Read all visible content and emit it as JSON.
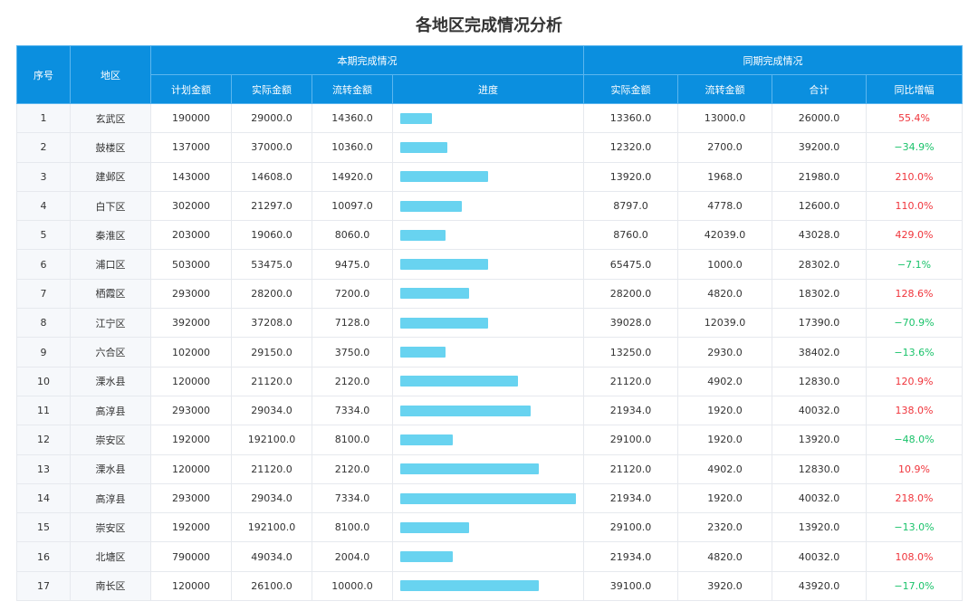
{
  "title": "各地区完成情况分析",
  "colors": {
    "header_bg": "#0b8fdf",
    "bar": "#68d3f0",
    "increase": "#f0353c",
    "decrease": "#1bc36b"
  },
  "headers": {
    "seq": "序号",
    "region": "地区",
    "current_group": "本期完成情况",
    "previous_group": "同期完成情况",
    "plan": "计划金额",
    "actual": "实际金额",
    "flow": "流转金额",
    "progress": "进度",
    "prev_actual": "实际金额",
    "prev_flow": "流转金额",
    "total": "合计",
    "yoy": "同比增幅"
  },
  "rows": [
    {
      "seq": "1",
      "region": "玄武区",
      "plan": "190000",
      "actual": "29000.0",
      "flow": "14360.0",
      "progress": 0.18,
      "prev_actual": "13360.0",
      "prev_flow": "13000.0",
      "total": "26000.0",
      "yoy": "55.4%",
      "trend": "up"
    },
    {
      "seq": "2",
      "region": "鼓楼区",
      "plan": "137000",
      "actual": "37000.0",
      "flow": "10360.0",
      "progress": 0.27,
      "prev_actual": "12320.0",
      "prev_flow": "2700.0",
      "total": "39200.0",
      "yoy": "−34.9%",
      "trend": "down"
    },
    {
      "seq": "3",
      "region": "建邺区",
      "plan": "143000",
      "actual": "14608.0",
      "flow": "14920.0",
      "progress": 0.5,
      "prev_actual": "13920.0",
      "prev_flow": "1968.0",
      "total": "21980.0",
      "yoy": "210.0%",
      "trend": "up"
    },
    {
      "seq": "4",
      "region": "白下区",
      "plan": "302000",
      "actual": "21297.0",
      "flow": "10097.0",
      "progress": 0.35,
      "prev_actual": "8797.0",
      "prev_flow": "4778.0",
      "total": "12600.0",
      "yoy": "110.0%",
      "trend": "up"
    },
    {
      "seq": "5",
      "region": "秦淮区",
      "plan": "203000",
      "actual": "19060.0",
      "flow": "8060.0",
      "progress": 0.26,
      "prev_actual": "8760.0",
      "prev_flow": "42039.0",
      "total": "43028.0",
      "yoy": "429.0%",
      "trend": "up"
    },
    {
      "seq": "6",
      "region": "浦口区",
      "plan": "503000",
      "actual": "53475.0",
      "flow": "9475.0",
      "progress": 0.5,
      "prev_actual": "65475.0",
      "prev_flow": "1000.0",
      "total": "28302.0",
      "yoy": "−7.1%",
      "trend": "down"
    },
    {
      "seq": "7",
      "region": "栖霞区",
      "plan": "293000",
      "actual": "28200.0",
      "flow": "7200.0",
      "progress": 0.39,
      "prev_actual": "28200.0",
      "prev_flow": "4820.0",
      "total": "18302.0",
      "yoy": "128.6%",
      "trend": "up"
    },
    {
      "seq": "8",
      "region": "江宁区",
      "plan": "392000",
      "actual": "37208.0",
      "flow": "7128.0",
      "progress": 0.5,
      "prev_actual": "39028.0",
      "prev_flow": "12039.0",
      "total": "17390.0",
      "yoy": "−70.9%",
      "trend": "down"
    },
    {
      "seq": "9",
      "region": "六合区",
      "plan": "102000",
      "actual": "29150.0",
      "flow": "3750.0",
      "progress": 0.26,
      "prev_actual": "13250.0",
      "prev_flow": "2930.0",
      "total": "38402.0",
      "yoy": "−13.6%",
      "trend": "down"
    },
    {
      "seq": "10",
      "region": "溧水县",
      "plan": "120000",
      "actual": "21120.0",
      "flow": "2120.0",
      "progress": 0.67,
      "prev_actual": "21120.0",
      "prev_flow": "4902.0",
      "total": "12830.0",
      "yoy": "120.9%",
      "trend": "up"
    },
    {
      "seq": "11",
      "region": "高淳县",
      "plan": "293000",
      "actual": "29034.0",
      "flow": "7334.0",
      "progress": 0.74,
      "prev_actual": "21934.0",
      "prev_flow": "1920.0",
      "total": "40032.0",
      "yoy": "138.0%",
      "trend": "up"
    },
    {
      "seq": "12",
      "region": "崇安区",
      "plan": "192000",
      "actual": "192100.0",
      "flow": "8100.0",
      "progress": 0.3,
      "prev_actual": "29100.0",
      "prev_flow": "1920.0",
      "total": "13920.0",
      "yoy": "−48.0%",
      "trend": "down"
    },
    {
      "seq": "13",
      "region": "溧水县",
      "plan": "120000",
      "actual": "21120.0",
      "flow": "2120.0",
      "progress": 0.79,
      "prev_actual": "21120.0",
      "prev_flow": "4902.0",
      "total": "12830.0",
      "yoy": "10.9%",
      "trend": "up"
    },
    {
      "seq": "14",
      "region": "高淳县",
      "plan": "293000",
      "actual": "29034.0",
      "flow": "7334.0",
      "progress": 1.0,
      "prev_actual": "21934.0",
      "prev_flow": "1920.0",
      "total": "40032.0",
      "yoy": "218.0%",
      "trend": "up"
    },
    {
      "seq": "15",
      "region": "崇安区",
      "plan": "192000",
      "actual": "192100.0",
      "flow": "8100.0",
      "progress": 0.39,
      "prev_actual": "29100.0",
      "prev_flow": "2320.0",
      "total": "13920.0",
      "yoy": "−13.0%",
      "trend": "down"
    },
    {
      "seq": "16",
      "region": "北塘区",
      "plan": "790000",
      "actual": "49034.0",
      "flow": "2004.0",
      "progress": 0.3,
      "prev_actual": "21934.0",
      "prev_flow": "4820.0",
      "total": "40032.0",
      "yoy": "108.0%",
      "trend": "up"
    },
    {
      "seq": "17",
      "region": "南长区",
      "plan": "120000",
      "actual": "26100.0",
      "flow": "10000.0",
      "progress": 0.79,
      "prev_actual": "39100.0",
      "prev_flow": "3920.0",
      "total": "43920.0",
      "yoy": "−17.0%",
      "trend": "down"
    }
  ]
}
